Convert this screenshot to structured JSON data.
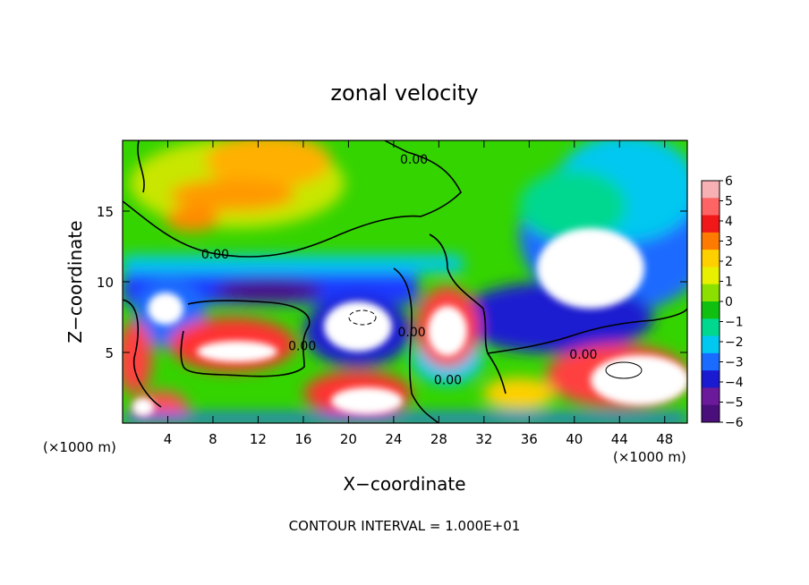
{
  "chart_data": {
    "type": "heatmap",
    "title": "zonal velocity",
    "xlabel": "X−coordinate",
    "ylabel": "Z−coordinate",
    "x_unit_left": "(×1000 m)",
    "x_unit_right": "(×1000 m)",
    "footer": "CONTOUR INTERVAL = 1.000E+01",
    "xlim": [
      0,
      50
    ],
    "ylim": [
      0,
      20
    ],
    "x_ticks": [
      4,
      8,
      12,
      16,
      20,
      24,
      28,
      32,
      36,
      40,
      44,
      48
    ],
    "y_ticks": [
      5,
      10,
      15
    ],
    "colorbar": {
      "levels": [
        6,
        5,
        4,
        3,
        2,
        1,
        0,
        -1,
        -2,
        -3,
        -4,
        -5,
        -6
      ],
      "labels": [
        "6",
        "5",
        "4",
        "3",
        "2",
        "1",
        "0",
        "−1",
        "−2",
        "−3",
        "−4",
        "−5",
        "−6"
      ],
      "colors": [
        "#f7b0b4",
        "#ff6464",
        "#f01818",
        "#ff7a00",
        "#ffd000",
        "#e8f000",
        "#8ce000",
        "#10c010",
        "#00d890",
        "#00c8f0",
        "#1a6bff",
        "#1a1ad0",
        "#6a1a9a",
        "#4a0f7a"
      ]
    },
    "contour_labels": [
      {
        "text": "0.00",
        "x": 25.8,
        "z": 18.6
      },
      {
        "text": "0.00",
        "x": 8.2,
        "z": 11.9
      },
      {
        "text": "0.00",
        "x": 15.9,
        "z": 5.4
      },
      {
        "text": "0.00",
        "x": 25.6,
        "z": 6.4
      },
      {
        "text": "0.00",
        "x": 28.8,
        "z": 3.0
      },
      {
        "text": "0.00",
        "x": 40.8,
        "z": 4.8
      }
    ]
  }
}
